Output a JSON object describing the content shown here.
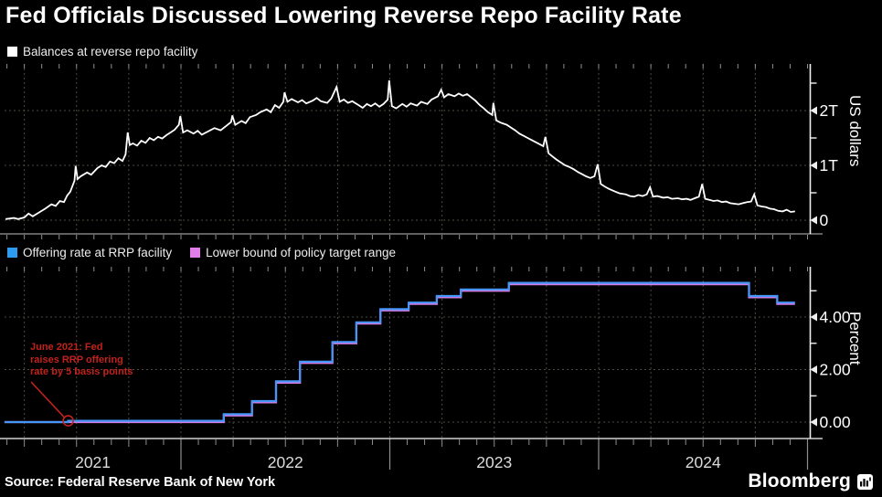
{
  "title": "Fed Officials Discussed Lowering Reverse Repo Facility Rate",
  "source": "Source: Federal Reserve Bank of New York",
  "brand": "Bloomberg",
  "colors": {
    "background": "#000000",
    "balances_line": "#ffffff",
    "offering_rate_line": "#4596f7",
    "lower_bound_line": "#d77ae4",
    "legend_blue": "#2d9bf0",
    "legend_magenta": "#e07de8",
    "annotation_red": "#c2221c",
    "grid": "#4b4b42",
    "axis_line": "#efefef",
    "panel_axis_line": "#9a9a9a",
    "tick": "#8f8f8f",
    "tick_label": "#ffffff",
    "year_label": "#dcdcdc"
  },
  "x_axis": {
    "year_labels": [
      {
        "label": "2021",
        "center": 2021.578
      },
      {
        "label": "2022",
        "center": 2022.5
      },
      {
        "label": "2023",
        "center": 2023.5
      },
      {
        "label": "2024",
        "center": 2024.5
      }
    ],
    "year_boundaries": [
      2022,
      2023,
      2024,
      2025
    ],
    "domain": [
      2021.155,
      2025.01
    ]
  },
  "chart_data": [
    {
      "type": "line",
      "legend": "Balances at reverse repo facility",
      "ylabel": "US dollars",
      "ylim": [
        0,
        2.85
      ],
      "y_ticks": [
        {
          "v": 0,
          "label": "0"
        },
        {
          "v": 1,
          "label": "1T"
        },
        {
          "v": 2,
          "label": "2T"
        }
      ],
      "y_minor_ticks": [
        0.5,
        1.5,
        2.5
      ],
      "grid_y": [
        0,
        1,
        2
      ],
      "units": "trillions of US dollars",
      "series": [
        {
          "name": "Balances at reverse repo facility",
          "points": [
            [
              2021.16,
              0.02
            ],
            [
              2021.2,
              0.04
            ],
            [
              2021.22,
              0.02
            ],
            [
              2021.25,
              0.05
            ],
            [
              2021.27,
              0.12
            ],
            [
              2021.29,
              0.07
            ],
            [
              2021.32,
              0.14
            ],
            [
              2021.35,
              0.21
            ],
            [
              2021.38,
              0.29
            ],
            [
              2021.4,
              0.26
            ],
            [
              2021.42,
              0.35
            ],
            [
              2021.44,
              0.33
            ],
            [
              2021.455,
              0.45
            ],
            [
              2021.47,
              0.52
            ],
            [
              2021.49,
              0.72
            ],
            [
              2021.496,
              0.99
            ],
            [
              2021.505,
              0.75
            ],
            [
              2021.52,
              0.8
            ],
            [
              2021.55,
              0.87
            ],
            [
              2021.57,
              0.83
            ],
            [
              2021.6,
              0.95
            ],
            [
              2021.62,
              1.0
            ],
            [
              2021.64,
              0.97
            ],
            [
              2021.66,
              1.07
            ],
            [
              2021.68,
              1.04
            ],
            [
              2021.7,
              1.13
            ],
            [
              2021.72,
              1.08
            ],
            [
              2021.735,
              1.2
            ],
            [
              2021.745,
              1.6
            ],
            [
              2021.755,
              1.37
            ],
            [
              2021.77,
              1.4
            ],
            [
              2021.79,
              1.36
            ],
            [
              2021.81,
              1.45
            ],
            [
              2021.83,
              1.41
            ],
            [
              2021.85,
              1.5
            ],
            [
              2021.87,
              1.46
            ],
            [
              2021.89,
              1.52
            ],
            [
              2021.91,
              1.49
            ],
            [
              2021.93,
              1.55
            ],
            [
              2021.95,
              1.6
            ],
            [
              2021.97,
              1.65
            ],
            [
              2021.99,
              1.74
            ],
            [
              2021.997,
              1.9
            ],
            [
              2022.01,
              1.6
            ],
            [
              2022.03,
              1.64
            ],
            [
              2022.06,
              1.58
            ],
            [
              2022.08,
              1.63
            ],
            [
              2022.1,
              1.56
            ],
            [
              2022.13,
              1.62
            ],
            [
              2022.16,
              1.68
            ],
            [
              2022.19,
              1.64
            ],
            [
              2022.22,
              1.73
            ],
            [
              2022.24,
              1.79
            ],
            [
              2022.246,
              1.91
            ],
            [
              2022.26,
              1.74
            ],
            [
              2022.29,
              1.81
            ],
            [
              2022.31,
              1.77
            ],
            [
              2022.33,
              1.88
            ],
            [
              2022.36,
              1.92
            ],
            [
              2022.38,
              1.97
            ],
            [
              2022.41,
              2.02
            ],
            [
              2022.43,
              1.97
            ],
            [
              2022.45,
              2.1
            ],
            [
              2022.47,
              2.05
            ],
            [
              2022.49,
              2.16
            ],
            [
              2022.496,
              2.33
            ],
            [
              2022.51,
              2.16
            ],
            [
              2022.53,
              2.21
            ],
            [
              2022.56,
              2.15
            ],
            [
              2022.58,
              2.19
            ],
            [
              2022.6,
              2.13
            ],
            [
              2022.63,
              2.18
            ],
            [
              2022.65,
              2.23
            ],
            [
              2022.67,
              2.17
            ],
            [
              2022.7,
              2.14
            ],
            [
              2022.72,
              2.22
            ],
            [
              2022.745,
              2.43
            ],
            [
              2022.76,
              2.16
            ],
            [
              2022.78,
              2.2
            ],
            [
              2022.8,
              2.14
            ],
            [
              2022.82,
              2.17
            ],
            [
              2022.85,
              2.1
            ],
            [
              2022.87,
              2.05
            ],
            [
              2022.89,
              2.12
            ],
            [
              2022.91,
              2.08
            ],
            [
              2022.93,
              2.13
            ],
            [
              2022.95,
              2.07
            ],
            [
              2022.97,
              2.12
            ],
            [
              2022.99,
              2.2
            ],
            [
              2022.997,
              2.55
            ],
            [
              2023.01,
              2.08
            ],
            [
              2023.03,
              2.04
            ],
            [
              2023.06,
              2.12
            ],
            [
              2023.08,
              2.07
            ],
            [
              2023.1,
              2.13
            ],
            [
              2023.13,
              2.09
            ],
            [
              2023.15,
              2.16
            ],
            [
              2023.18,
              2.12
            ],
            [
              2023.2,
              2.2
            ],
            [
              2023.23,
              2.26
            ],
            [
              2023.246,
              2.38
            ],
            [
              2023.26,
              2.24
            ],
            [
              2023.28,
              2.3
            ],
            [
              2023.31,
              2.26
            ],
            [
              2023.33,
              2.31
            ],
            [
              2023.35,
              2.27
            ],
            [
              2023.37,
              2.3
            ],
            [
              2023.39,
              2.24
            ],
            [
              2023.41,
              2.18
            ],
            [
              2023.43,
              2.1
            ],
            [
              2023.45,
              2.04
            ],
            [
              2023.47,
              1.97
            ],
            [
              2023.49,
              1.92
            ],
            [
              2023.496,
              2.14
            ],
            [
              2023.51,
              1.82
            ],
            [
              2023.53,
              1.78
            ],
            [
              2023.56,
              1.74
            ],
            [
              2023.58,
              1.69
            ],
            [
              2023.6,
              1.64
            ],
            [
              2023.62,
              1.58
            ],
            [
              2023.64,
              1.54
            ],
            [
              2023.66,
              1.5
            ],
            [
              2023.68,
              1.46
            ],
            [
              2023.7,
              1.42
            ],
            [
              2023.72,
              1.38
            ],
            [
              2023.735,
              1.35
            ],
            [
              2023.745,
              1.52
            ],
            [
              2023.76,
              1.22
            ],
            [
              2023.78,
              1.16
            ],
            [
              2023.8,
              1.1
            ],
            [
              2023.82,
              1.05
            ],
            [
              2023.84,
              1.0
            ],
            [
              2023.86,
              0.97
            ],
            [
              2023.88,
              0.93
            ],
            [
              2023.9,
              0.88
            ],
            [
              2023.92,
              0.84
            ],
            [
              2023.94,
              0.8
            ],
            [
              2023.96,
              0.77
            ],
            [
              2023.98,
              0.8
            ],
            [
              2023.995,
              1.02
            ],
            [
              2024.01,
              0.66
            ],
            [
              2024.03,
              0.61
            ],
            [
              2024.05,
              0.57
            ],
            [
              2024.08,
              0.52
            ],
            [
              2024.1,
              0.49
            ],
            [
              2024.13,
              0.47
            ],
            [
              2024.15,
              0.44
            ],
            [
              2024.17,
              0.43
            ],
            [
              2024.19,
              0.46
            ],
            [
              2024.21,
              0.44
            ],
            [
              2024.23,
              0.47
            ],
            [
              2024.246,
              0.6
            ],
            [
              2024.26,
              0.43
            ],
            [
              2024.28,
              0.44
            ],
            [
              2024.31,
              0.41
            ],
            [
              2024.33,
              0.42
            ],
            [
              2024.35,
              0.39
            ],
            [
              2024.38,
              0.4
            ],
            [
              2024.4,
              0.38
            ],
            [
              2024.42,
              0.39
            ],
            [
              2024.44,
              0.37
            ],
            [
              2024.46,
              0.4
            ],
            [
              2024.48,
              0.43
            ],
            [
              2024.496,
              0.66
            ],
            [
              2024.51,
              0.39
            ],
            [
              2024.53,
              0.37
            ],
            [
              2024.55,
              0.35
            ],
            [
              2024.57,
              0.36
            ],
            [
              2024.59,
              0.33
            ],
            [
              2024.61,
              0.34
            ],
            [
              2024.63,
              0.31
            ],
            [
              2024.65,
              0.3
            ],
            [
              2024.67,
              0.29
            ],
            [
              2024.69,
              0.31
            ],
            [
              2024.71,
              0.33
            ],
            [
              2024.73,
              0.34
            ],
            [
              2024.745,
              0.47
            ],
            [
              2024.76,
              0.27
            ],
            [
              2024.78,
              0.25
            ],
            [
              2024.8,
              0.24
            ],
            [
              2024.82,
              0.21
            ],
            [
              2024.84,
              0.2
            ],
            [
              2024.86,
              0.17
            ],
            [
              2024.88,
              0.16
            ],
            [
              2024.9,
              0.19
            ],
            [
              2024.92,
              0.15
            ],
            [
              2024.94,
              0.16
            ]
          ]
        }
      ]
    },
    {
      "type": "step-line",
      "legend": [
        "Offering rate at RRP facility",
        "Lower bound of policy target range"
      ],
      "ylabel": "Percent",
      "ylim": [
        0,
        5.91
      ],
      "y_ticks": [
        {
          "v": 0,
          "label": "0.00"
        },
        {
          "v": 2,
          "label": "2.00"
        },
        {
          "v": 4,
          "label": "4.00"
        }
      ],
      "y_minor_ticks": [
        1,
        3,
        5
      ],
      "grid_y": [
        0,
        2,
        4
      ],
      "units": "percent",
      "series": [
        {
          "name": "Offering rate at RRP facility",
          "steps": [
            [
              2021.155,
              0.0
            ],
            [
              2021.46,
              0.05
            ],
            [
              2022.205,
              0.3
            ],
            [
              2022.34,
              0.8
            ],
            [
              2022.455,
              1.55
            ],
            [
              2022.57,
              2.3
            ],
            [
              2022.725,
              3.05
            ],
            [
              2022.84,
              3.8
            ],
            [
              2022.955,
              4.3
            ],
            [
              2023.09,
              4.55
            ],
            [
              2023.225,
              4.8
            ],
            [
              2023.34,
              5.05
            ],
            [
              2023.57,
              5.3
            ],
            [
              2024.72,
              4.8
            ],
            [
              2024.855,
              4.55
            ]
          ],
          "end": 2024.94
        },
        {
          "name": "Lower bound of policy target range",
          "steps": [
            [
              2021.155,
              0.0
            ],
            [
              2022.205,
              0.25
            ],
            [
              2022.34,
              0.75
            ],
            [
              2022.455,
              1.5
            ],
            [
              2022.57,
              2.25
            ],
            [
              2022.725,
              3.0
            ],
            [
              2022.84,
              3.75
            ],
            [
              2022.955,
              4.25
            ],
            [
              2023.09,
              4.5
            ],
            [
              2023.225,
              4.75
            ],
            [
              2023.34,
              5.0
            ],
            [
              2023.57,
              5.25
            ],
            [
              2024.72,
              4.75
            ],
            [
              2024.855,
              4.5
            ]
          ],
          "end": 2024.94
        }
      ],
      "annotation": {
        "line1": "June 2021: Fed",
        "line2": "raises RRP offering",
        "line3": "rate by 5 basis points",
        "marker": {
          "year": 2021.46,
          "value": 0.05
        }
      }
    }
  ]
}
